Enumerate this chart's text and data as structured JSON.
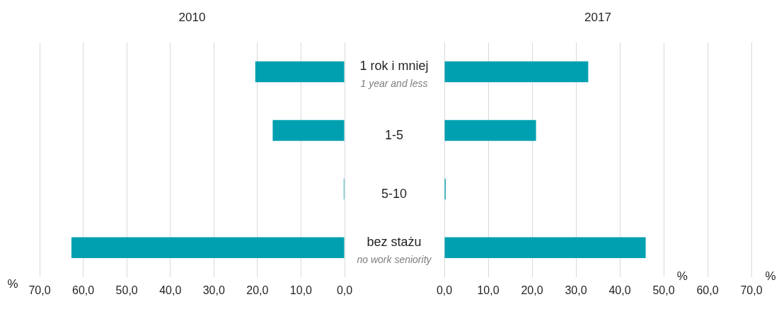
{
  "chart_data": [
    {
      "type": "bar",
      "orientation": "horizontal",
      "title": "2010",
      "xlabel": "%",
      "categories": [
        "1 rok i mniej\n1 year and less",
        "1-5",
        "5-10",
        "bez stażu\nno work seniority"
      ],
      "values": [
        20.5,
        16.5,
        0.2,
        62.7
      ],
      "color": "#00a0b0",
      "xlim": [
        70,
        0
      ],
      "xticks": [
        {
          "value": 70,
          "label": "70,0"
        },
        {
          "value": 60,
          "label": "60,0"
        },
        {
          "value": 50,
          "label": "50,0"
        },
        {
          "value": 40,
          "label": "40,0"
        },
        {
          "value": 30,
          "label": "30,0"
        },
        {
          "value": 20,
          "label": "20,0"
        },
        {
          "value": 10,
          "label": "10,0"
        },
        {
          "value": 0,
          "label": "0,0"
        }
      ],
      "grid": "x"
    },
    {
      "type": "bar",
      "orientation": "horizontal",
      "title": "2017",
      "xlabel": "%",
      "annotations": [
        "%"
      ],
      "categories": [
        null,
        null,
        null,
        null
      ],
      "values": [
        32.8,
        20.9,
        0.3,
        45.9
      ],
      "color": "#00a0b0",
      "xlim": [
        0,
        70
      ],
      "xticks": [
        {
          "value": 0,
          "label": "0,0"
        },
        {
          "value": 10,
          "label": "10,0"
        },
        {
          "value": 20,
          "label": "20,0"
        },
        {
          "value": 30,
          "label": "30,0"
        },
        {
          "value": 40,
          "label": "40,0"
        },
        {
          "value": 50,
          "label": "50,0"
        },
        {
          "value": 60,
          "label": "60,0"
        },
        {
          "value": 70,
          "label": "70,0"
        }
      ],
      "grid": "x",
      "tick_labels": "x"
    }
  ]
}
